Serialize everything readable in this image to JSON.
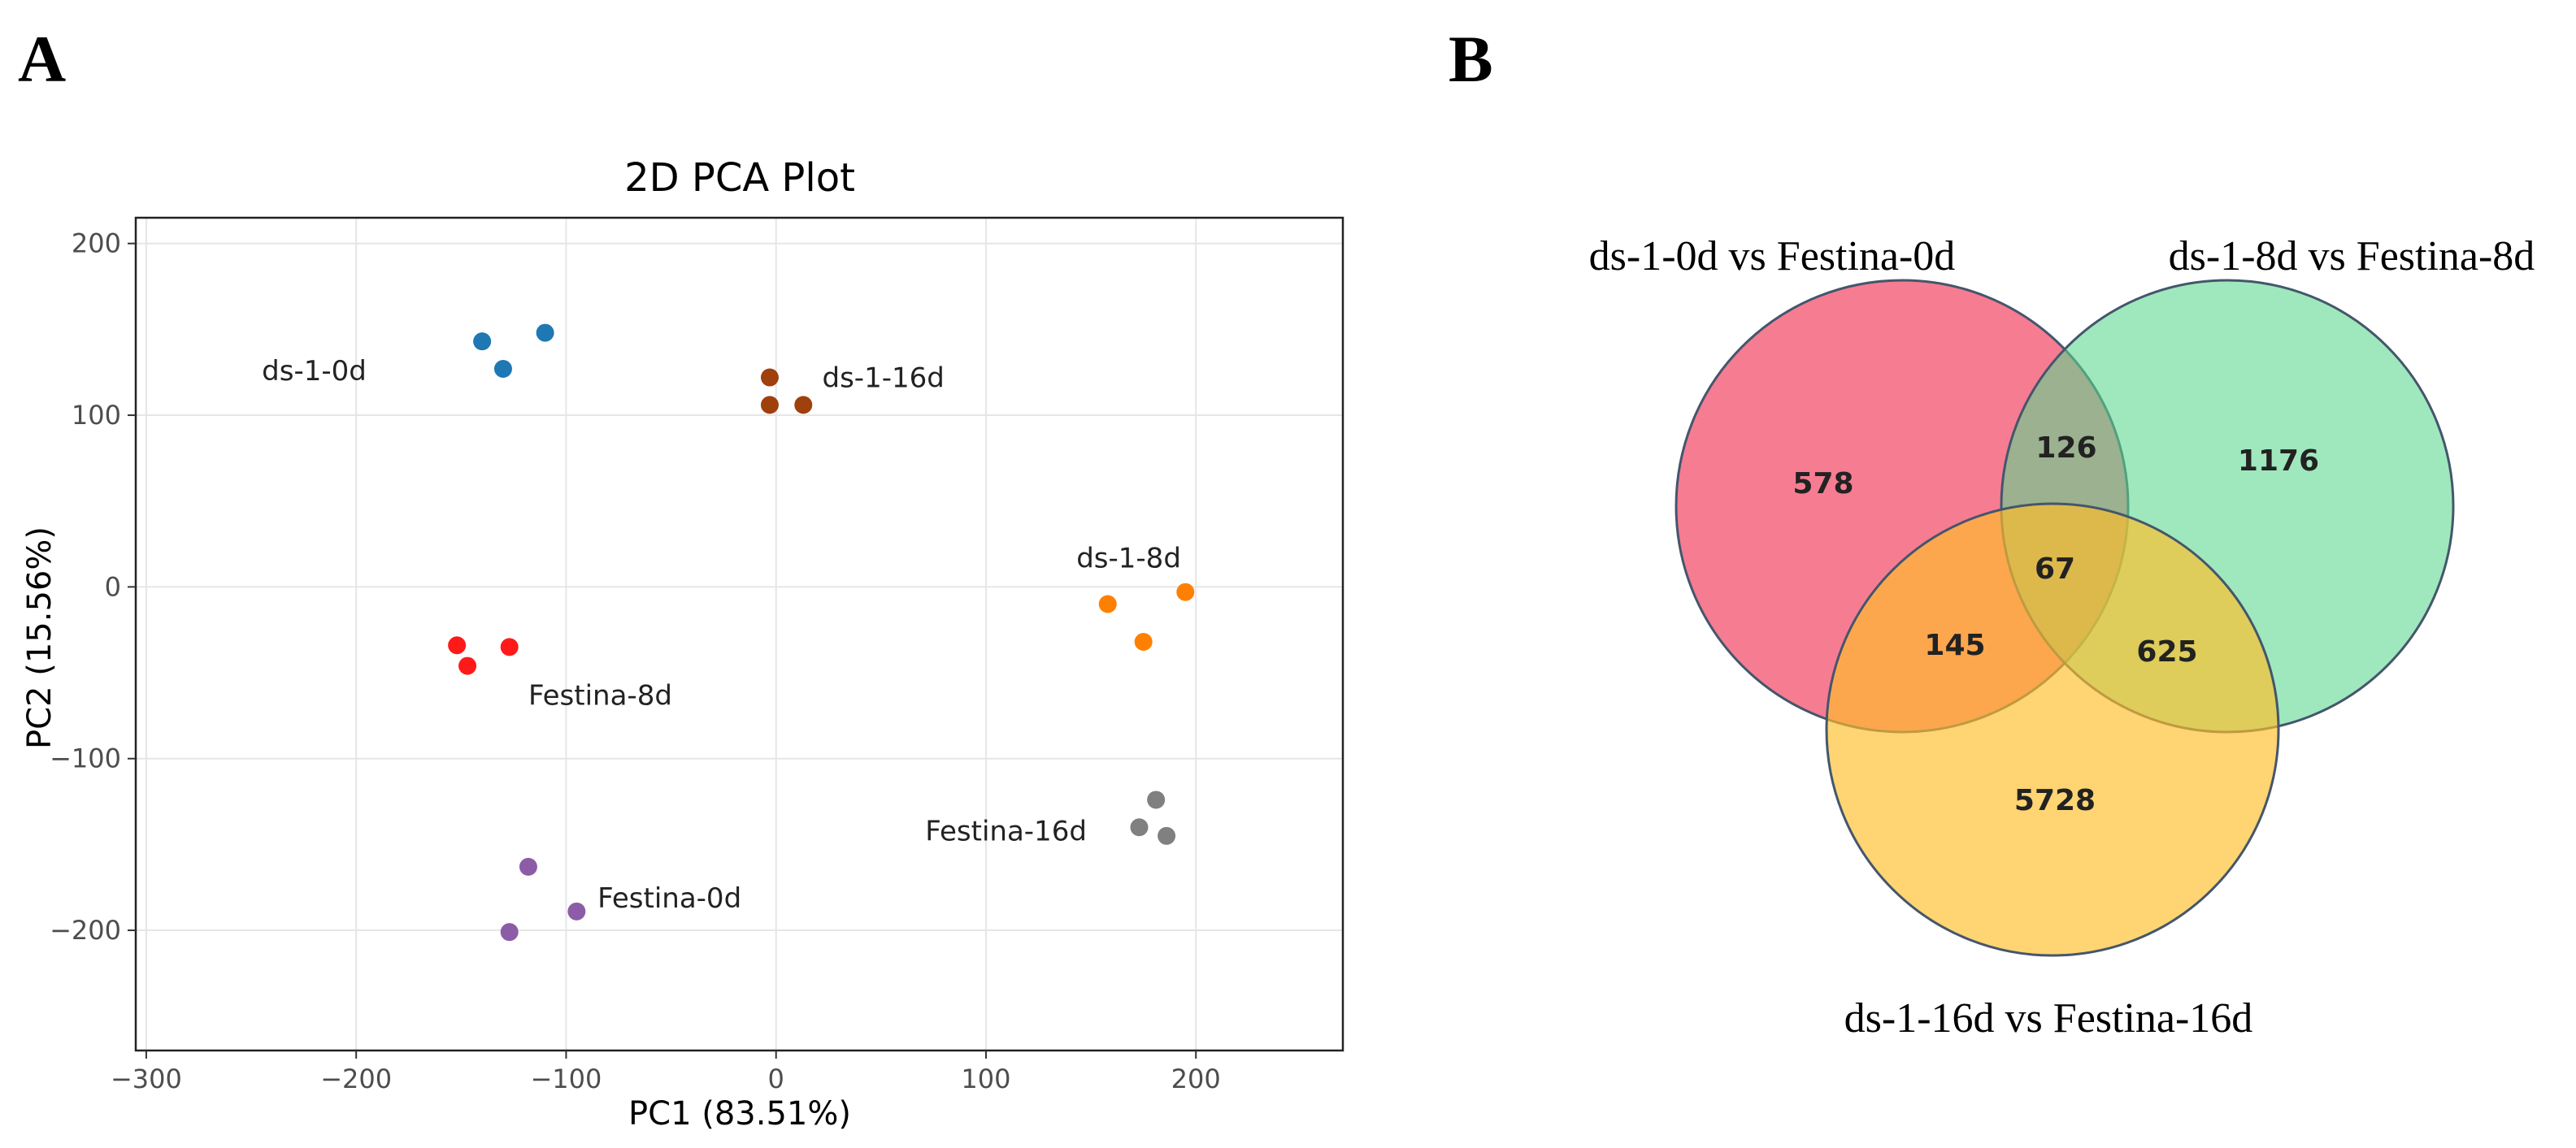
{
  "panel_labels": {
    "a": "A",
    "b": "B"
  },
  "chart_data": [
    {
      "type": "scatter",
      "title": "2D PCA Plot",
      "xlabel": "PC1 (83.51%)",
      "ylabel": "PC2 (15.56%)",
      "xlim": [
        -305,
        270
      ],
      "ylim": [
        -270,
        215
      ],
      "xticks": [
        -300,
        -200,
        -100,
        0,
        100,
        200
      ],
      "yticks": [
        -200,
        -100,
        0,
        100,
        200
      ],
      "xtick_labels": [
        "−300",
        "−200",
        "−100",
        "0",
        "100",
        "200"
      ],
      "ytick_labels": [
        "−200",
        "−100",
        "0",
        "100",
        "200"
      ],
      "grid": true,
      "series": [
        {
          "name": "ds-1-0d",
          "label": "ds-1-0d",
          "color": "#1f77b4",
          "x": [
            -140,
            -110,
            -130
          ],
          "y": [
            143,
            148,
            127
          ],
          "label_pos": {
            "x": -220,
            "y": 126,
            "anchor": "middle"
          }
        },
        {
          "name": "ds-1-16d",
          "label": "ds-1-16d",
          "color": "#a0400c",
          "x": [
            -3,
            -3,
            13
          ],
          "y": [
            122,
            106,
            106
          ],
          "label_pos": {
            "x": 22,
            "y": 122,
            "anchor": "start"
          }
        },
        {
          "name": "ds-1-8d",
          "label": "ds-1-8d",
          "color": "#ff8000",
          "x": [
            158,
            195,
            175
          ],
          "y": [
            -10,
            -3,
            -32
          ],
          "label_pos": {
            "x": 168,
            "y": 17,
            "anchor": "middle"
          }
        },
        {
          "name": "Festina-8d",
          "label": "Festina-8d",
          "color": "#ff1a1a",
          "x": [
            -152,
            -127,
            -147
          ],
          "y": [
            -34,
            -35,
            -46
          ],
          "label_pos": {
            "x": -118,
            "y": -63,
            "anchor": "start"
          }
        },
        {
          "name": "Festina-16d",
          "label": "Festina-16d",
          "color": "#808080",
          "x": [
            181,
            173,
            186
          ],
          "y": [
            -124,
            -140,
            -145
          ],
          "label_pos": {
            "x": 148,
            "y": -142,
            "anchor": "end"
          }
        },
        {
          "name": "Festina-0d",
          "label": "Festina-0d",
          "color": "#8c5da6",
          "x": [
            -118,
            -95,
            -127
          ],
          "y": [
            -163,
            -189,
            -201
          ],
          "label_pos": {
            "x": -85,
            "y": -181,
            "anchor": "start"
          }
        }
      ]
    },
    {
      "type": "venn",
      "sets": [
        {
          "name": "ds-1-0d vs Festina-0d",
          "color": "#f23e5e",
          "position": "top-left"
        },
        {
          "name": "ds-1-8d vs Festina-8d",
          "color": "#5ad88e",
          "position": "top-right"
        },
        {
          "name": "ds-1-16d vs Festina-16d",
          "color": "#ffbe29",
          "position": "bottom"
        }
      ],
      "regions": {
        "only_0d": "578",
        "only_8d": "1176",
        "only_16d": "5728",
        "0d_8d": "126",
        "0d_16d": "145",
        "8d_16d": "625",
        "all": "67"
      }
    }
  ]
}
